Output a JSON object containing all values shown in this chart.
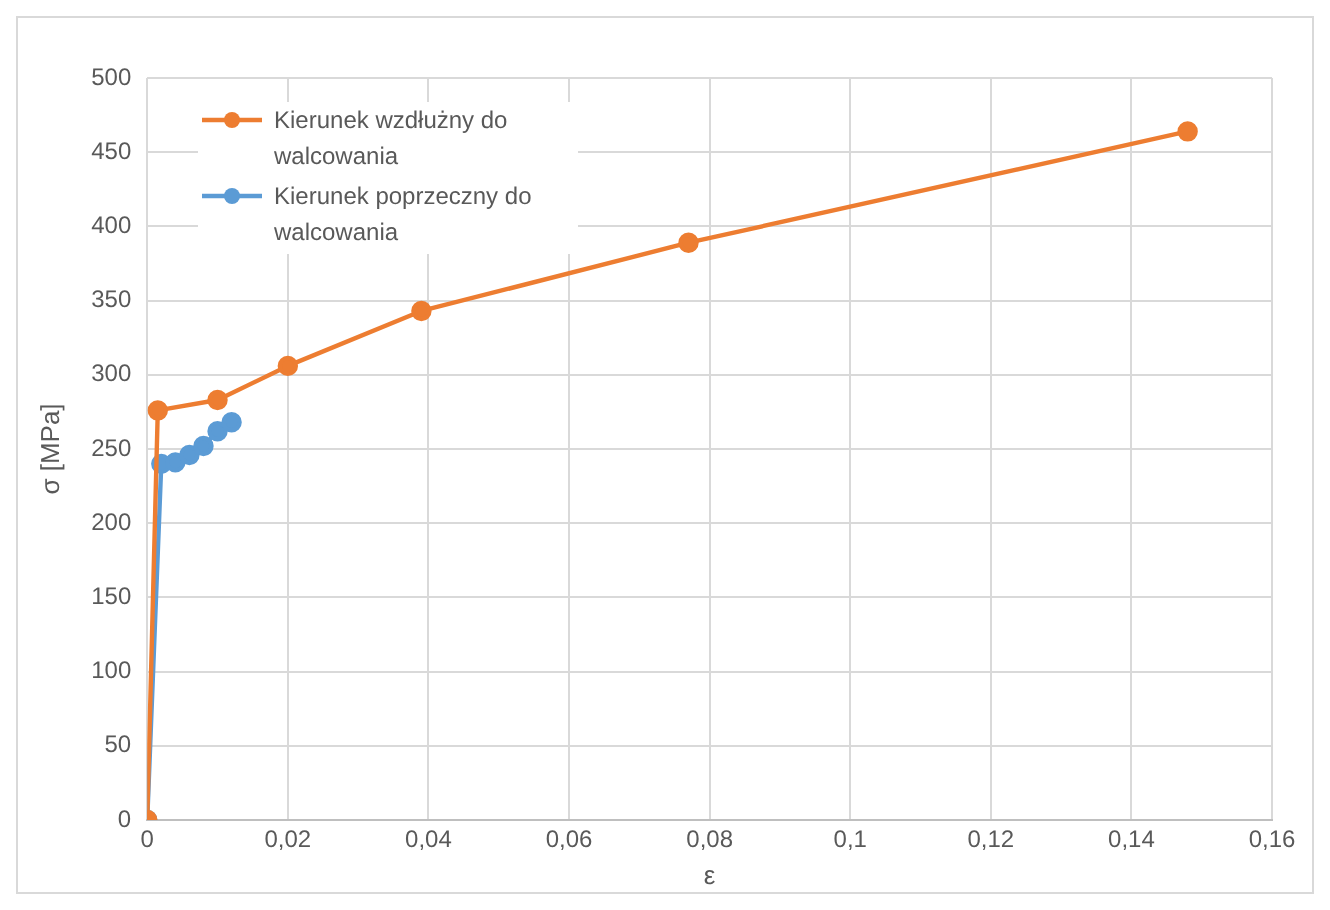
{
  "chart_data": {
    "type": "line",
    "xlabel": "ε",
    "ylabel": "σ [MPa]",
    "xlim": [
      0,
      0.16
    ],
    "xticks": [
      0,
      {
        "value": 0.02,
        "label": "0,02"
      },
      {
        "value": 0.04,
        "label": "0,04"
      },
      {
        "value": 0.06,
        "label": "0,06"
      },
      {
        "value": 0.08,
        "label": "0,08"
      },
      {
        "value": 0.1,
        "label": "0,1"
      },
      {
        "value": 0.12,
        "label": "0,12"
      },
      {
        "value": 0.14,
        "label": "0,14"
      },
      {
        "value": 0.16,
        "label": "0,16"
      }
    ],
    "ylim": [
      0,
      500
    ],
    "yticks": [
      0,
      50,
      100,
      150,
      200,
      250,
      300,
      350,
      400,
      450,
      500
    ],
    "grid": true,
    "legend": "top left",
    "marker": "circle",
    "line_style": "solid",
    "series": [
      {
        "name": "Kierunek wzdłużny do walcowania",
        "color": "#ed7d31",
        "x": [
          0,
          0.0015,
          0.01,
          0.02,
          0.039,
          0.077,
          0.148
        ],
        "values": [
          0,
          276,
          283,
          306,
          343,
          389,
          464
        ]
      },
      {
        "name": "Kierunek poprzeczny do walcowania",
        "color": "#5b9bd5",
        "x": [
          0,
          0.002,
          0.004,
          0.006,
          0.008,
          0.01,
          0.012
        ],
        "values": [
          0,
          240,
          241,
          246,
          252,
          262,
          268
        ]
      }
    ]
  }
}
